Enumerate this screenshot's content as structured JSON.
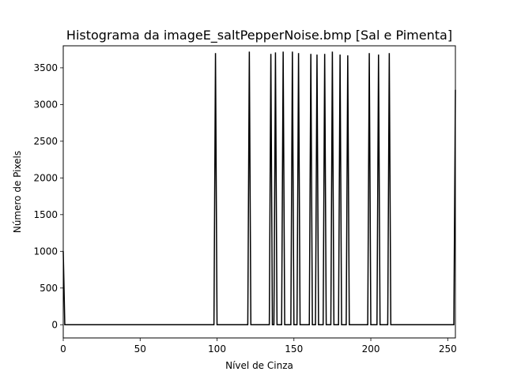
{
  "chart_data": {
    "type": "line",
    "title": "Histograma da imageE_saltPepperNoise.bmp [Sal e Pimenta]",
    "xlabel": "Nível de Cinza",
    "ylabel": "Número de Pixels",
    "xlim": [
      0,
      255
    ],
    "ylim": [
      -180,
      3800
    ],
    "xticks": [
      0,
      50,
      100,
      150,
      200,
      250
    ],
    "yticks": [
      0,
      500,
      1000,
      1500,
      2000,
      2500,
      3000,
      3500
    ],
    "grid": false,
    "line_color": "#000000",
    "series": [
      {
        "x": [
          0,
          1,
          98,
          99,
          100,
          120,
          121,
          122,
          134,
          135,
          136,
          137,
          138,
          139,
          142,
          143,
          144,
          148,
          149,
          150,
          152,
          153,
          154,
          160,
          161,
          162,
          164,
          165,
          166,
          169,
          170,
          171,
          174,
          175,
          176,
          179,
          180,
          181,
          184,
          185,
          186,
          198,
          199,
          200,
          204,
          205,
          206,
          211,
          212,
          213,
          254,
          255
        ],
        "y": [
          1000,
          0,
          0,
          3700,
          0,
          0,
          3720,
          0,
          0,
          3690,
          0,
          0,
          3710,
          0,
          0,
          3720,
          0,
          0,
          3720,
          0,
          0,
          3700,
          0,
          0,
          3690,
          0,
          0,
          3680,
          0,
          0,
          3690,
          0,
          0,
          3720,
          0,
          0,
          3680,
          0,
          0,
          3670,
          0,
          0,
          3700,
          0,
          0,
          3680,
          0,
          0,
          3700,
          0,
          0,
          3200
        ]
      }
    ]
  }
}
